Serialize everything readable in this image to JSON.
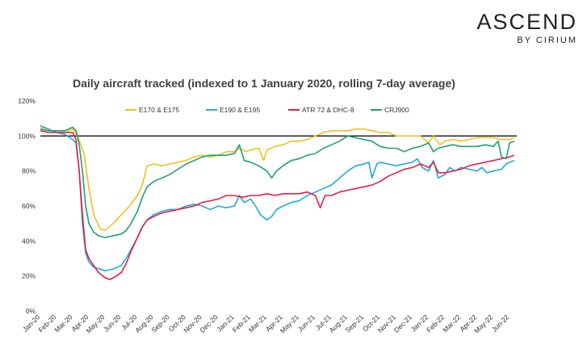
{
  "brand": {
    "name": "ASCEND",
    "sub": "BY CIRIUM"
  },
  "chart_data": {
    "type": "line",
    "title": "Daily aircraft tracked (indexed to 1 January 2020, rolling 7-day average)",
    "xlabel": "",
    "ylabel": "",
    "ylim": [
      0,
      120
    ],
    "y_ticks": [
      "0%",
      "20%",
      "40%",
      "60%",
      "80%",
      "100%",
      "120%"
    ],
    "reference_line": 100,
    "x_ticks": [
      "Jan-20",
      "Feb-20",
      "Mar-20",
      "Apr-20",
      "May-20",
      "Jun-20",
      "Jul-20",
      "Aug-20",
      "Sep-20",
      "Oct-20",
      "Nov-20",
      "Dec-20",
      "Jan-21",
      "Feb-21",
      "Mar-21",
      "Apr-21",
      "May-21",
      "Jun-21",
      "Jul-21",
      "Aug-21",
      "Sep-21",
      "Oct-21",
      "Nov-21",
      "Dec-21",
      "Jan-22",
      "Feb-22",
      "Mar-22",
      "Apr-22",
      "May-22",
      "Jun-22"
    ],
    "legend_position": "top",
    "series": [
      {
        "name": "E170 & E175",
        "color": "#F0C020",
        "points": [
          [
            0,
            105
          ],
          [
            0.5,
            104
          ],
          [
            1,
            102
          ],
          [
            1.5,
            102
          ],
          [
            2,
            104
          ],
          [
            2.3,
            100
          ],
          [
            2.7,
            90
          ],
          [
            3,
            70
          ],
          [
            3.3,
            55
          ],
          [
            3.7,
            47
          ],
          [
            4,
            46
          ],
          [
            4.5,
            50
          ],
          [
            5,
            55
          ],
          [
            5.5,
            60
          ],
          [
            6,
            66
          ],
          [
            6.3,
            72
          ],
          [
            6.6,
            83
          ],
          [
            7,
            84
          ],
          [
            7.5,
            83
          ],
          [
            8,
            84
          ],
          [
            8.5,
            85
          ],
          [
            9,
            86
          ],
          [
            9.5,
            88
          ],
          [
            10,
            89
          ],
          [
            10.5,
            88
          ],
          [
            11,
            89
          ],
          [
            11.5,
            91
          ],
          [
            12,
            91
          ],
          [
            12.3,
            93
          ],
          [
            12.7,
            91
          ],
          [
            13,
            92
          ],
          [
            13.5,
            93
          ],
          [
            13.8,
            86
          ],
          [
            14,
            92
          ],
          [
            14.5,
            94
          ],
          [
            15,
            95
          ],
          [
            15.5,
            97
          ],
          [
            16,
            97
          ],
          [
            16.5,
            98
          ],
          [
            17,
            100
          ],
          [
            17.5,
            102
          ],
          [
            18,
            103
          ],
          [
            18.5,
            103
          ],
          [
            19,
            103
          ],
          [
            19.5,
            104
          ],
          [
            20,
            104
          ],
          [
            20.5,
            103
          ],
          [
            21,
            102
          ],
          [
            21.5,
            102
          ],
          [
            22,
            100
          ],
          [
            22.5,
            100
          ],
          [
            23,
            100
          ],
          [
            23.5,
            100
          ],
          [
            24,
            96
          ],
          [
            24.3,
            100
          ],
          [
            24.7,
            95
          ],
          [
            25,
            97
          ],
          [
            25.5,
            98
          ],
          [
            26,
            97
          ],
          [
            26.5,
            98
          ],
          [
            27,
            99
          ],
          [
            27.5,
            99
          ],
          [
            28,
            99
          ],
          [
            28.5,
            98
          ],
          [
            29,
            98
          ],
          [
            29.3,
            99
          ]
        ]
      },
      {
        "name": "E190 & E195",
        "color": "#20A8E0",
        "points": [
          [
            0,
            106
          ],
          [
            0.5,
            104
          ],
          [
            1,
            102
          ],
          [
            1.5,
            101
          ],
          [
            2,
            98
          ],
          [
            2.2,
            96
          ],
          [
            2.4,
            80
          ],
          [
            2.6,
            50
          ],
          [
            2.8,
            33
          ],
          [
            3,
            28
          ],
          [
            3.3,
            25
          ],
          [
            3.7,
            24
          ],
          [
            4,
            23
          ],
          [
            4.5,
            24
          ],
          [
            5,
            26
          ],
          [
            5.3,
            30
          ],
          [
            5.6,
            35
          ],
          [
            6,
            42
          ],
          [
            6.3,
            48
          ],
          [
            6.6,
            52
          ],
          [
            7,
            55
          ],
          [
            7.5,
            57
          ],
          [
            8,
            58
          ],
          [
            8.5,
            58
          ],
          [
            9,
            60
          ],
          [
            9.5,
            61
          ],
          [
            10,
            60
          ],
          [
            10.5,
            58
          ],
          [
            11,
            60
          ],
          [
            11.5,
            59
          ],
          [
            12,
            60
          ],
          [
            12.3,
            66
          ],
          [
            12.6,
            62
          ],
          [
            13,
            64
          ],
          [
            13.3,
            60
          ],
          [
            13.6,
            55
          ],
          [
            14,
            52
          ],
          [
            14.3,
            54
          ],
          [
            14.6,
            58
          ],
          [
            15,
            60
          ],
          [
            15.5,
            62
          ],
          [
            16,
            63
          ],
          [
            16.5,
            66
          ],
          [
            17,
            68
          ],
          [
            17.5,
            70
          ],
          [
            18,
            72
          ],
          [
            18.5,
            76
          ],
          [
            19,
            80
          ],
          [
            19.5,
            83
          ],
          [
            20,
            84
          ],
          [
            20.3,
            85
          ],
          [
            20.5,
            76
          ],
          [
            20.8,
            84
          ],
          [
            21,
            85
          ],
          [
            21.5,
            84
          ],
          [
            22,
            83
          ],
          [
            22.5,
            84
          ],
          [
            23,
            85
          ],
          [
            23.3,
            87
          ],
          [
            23.6,
            82
          ],
          [
            24,
            80
          ],
          [
            24.3,
            86
          ],
          [
            24.6,
            76
          ],
          [
            25,
            78
          ],
          [
            25.3,
            82
          ],
          [
            25.6,
            80
          ],
          [
            26,
            82
          ],
          [
            26.5,
            81
          ],
          [
            27,
            80
          ],
          [
            27.3,
            82
          ],
          [
            27.6,
            79
          ],
          [
            28,
            80
          ],
          [
            28.5,
            81
          ],
          [
            28.8,
            84
          ],
          [
            29,
            85
          ],
          [
            29.3,
            86
          ]
        ]
      },
      {
        "name": "ATR 72 & DHC-8",
        "color": "#E0204A",
        "points": [
          [
            0,
            103
          ],
          [
            0.5,
            102
          ],
          [
            1,
            102
          ],
          [
            1.5,
            102
          ],
          [
            2,
            102
          ],
          [
            2.2,
            98
          ],
          [
            2.4,
            80
          ],
          [
            2.6,
            55
          ],
          [
            2.8,
            35
          ],
          [
            3,
            30
          ],
          [
            3.3,
            26
          ],
          [
            3.6,
            22
          ],
          [
            4,
            19
          ],
          [
            4.3,
            18
          ],
          [
            4.7,
            20
          ],
          [
            5,
            22
          ],
          [
            5.3,
            27
          ],
          [
            5.6,
            34
          ],
          [
            6,
            42
          ],
          [
            6.3,
            48
          ],
          [
            6.6,
            52
          ],
          [
            7,
            54
          ],
          [
            7.5,
            56
          ],
          [
            8,
            57
          ],
          [
            8.5,
            58
          ],
          [
            9,
            59
          ],
          [
            9.5,
            60
          ],
          [
            10,
            62
          ],
          [
            10.5,
            63
          ],
          [
            11,
            64
          ],
          [
            11.5,
            66
          ],
          [
            12,
            66
          ],
          [
            12.5,
            65
          ],
          [
            13,
            66
          ],
          [
            13.5,
            66
          ],
          [
            14,
            67
          ],
          [
            14.5,
            66
          ],
          [
            15,
            67
          ],
          [
            15.5,
            67
          ],
          [
            16,
            67
          ],
          [
            16.5,
            68
          ],
          [
            17,
            66
          ],
          [
            17.3,
            59
          ],
          [
            17.6,
            66
          ],
          [
            18,
            66
          ],
          [
            18.5,
            68
          ],
          [
            19,
            69
          ],
          [
            19.5,
            70
          ],
          [
            20,
            71
          ],
          [
            20.5,
            72
          ],
          [
            21,
            74
          ],
          [
            21.5,
            77
          ],
          [
            22,
            79
          ],
          [
            22.5,
            81
          ],
          [
            23,
            82
          ],
          [
            23.5,
            84
          ],
          [
            24,
            82
          ],
          [
            24.3,
            85
          ],
          [
            24.6,
            79
          ],
          [
            25,
            79
          ],
          [
            25.5,
            80
          ],
          [
            26,
            81
          ],
          [
            26.5,
            83
          ],
          [
            27,
            84
          ],
          [
            27.5,
            85
          ],
          [
            28,
            86
          ],
          [
            28.5,
            87
          ],
          [
            29,
            88
          ],
          [
            29.3,
            89
          ]
        ]
      },
      {
        "name": "CRJ900",
        "color": "#20A070",
        "points": [
          [
            0,
            104
          ],
          [
            0.5,
            103
          ],
          [
            1,
            103
          ],
          [
            1.5,
            103
          ],
          [
            2,
            105
          ],
          [
            2.2,
            103
          ],
          [
            2.4,
            95
          ],
          [
            2.6,
            80
          ],
          [
            2.8,
            60
          ],
          [
            3,
            50
          ],
          [
            3.3,
            45
          ],
          [
            3.6,
            43
          ],
          [
            4,
            42
          ],
          [
            4.5,
            43
          ],
          [
            5,
            44
          ],
          [
            5.3,
            46
          ],
          [
            5.6,
            50
          ],
          [
            6,
            57
          ],
          [
            6.3,
            65
          ],
          [
            6.6,
            71
          ],
          [
            7,
            74
          ],
          [
            7.5,
            76
          ],
          [
            8,
            78
          ],
          [
            8.5,
            81
          ],
          [
            9,
            84
          ],
          [
            9.5,
            86
          ],
          [
            10,
            88
          ],
          [
            10.5,
            89
          ],
          [
            11,
            89
          ],
          [
            11.5,
            89
          ],
          [
            12,
            90
          ],
          [
            12.3,
            95
          ],
          [
            12.6,
            86
          ],
          [
            13,
            85
          ],
          [
            13.5,
            83
          ],
          [
            14,
            80
          ],
          [
            14.3,
            76
          ],
          [
            14.6,
            80
          ],
          [
            15,
            83
          ],
          [
            15.5,
            86
          ],
          [
            16,
            87
          ],
          [
            16.5,
            89
          ],
          [
            17,
            90
          ],
          [
            17.5,
            93
          ],
          [
            18,
            95
          ],
          [
            18.5,
            97
          ],
          [
            19,
            100
          ],
          [
            19.5,
            99
          ],
          [
            20,
            98
          ],
          [
            20.5,
            97
          ],
          [
            21,
            94
          ],
          [
            21.5,
            93
          ],
          [
            22,
            93
          ],
          [
            22.5,
            91
          ],
          [
            23,
            93
          ],
          [
            23.5,
            94
          ],
          [
            24,
            96
          ],
          [
            24.3,
            91
          ],
          [
            24.6,
            93
          ],
          [
            25,
            94
          ],
          [
            25.5,
            95
          ],
          [
            26,
            94
          ],
          [
            26.5,
            94
          ],
          [
            27,
            94
          ],
          [
            27.5,
            95
          ],
          [
            28,
            94
          ],
          [
            28.3,
            97
          ],
          [
            28.5,
            88
          ],
          [
            28.8,
            87
          ],
          [
            29,
            96
          ],
          [
            29.3,
            97
          ]
        ]
      }
    ]
  }
}
